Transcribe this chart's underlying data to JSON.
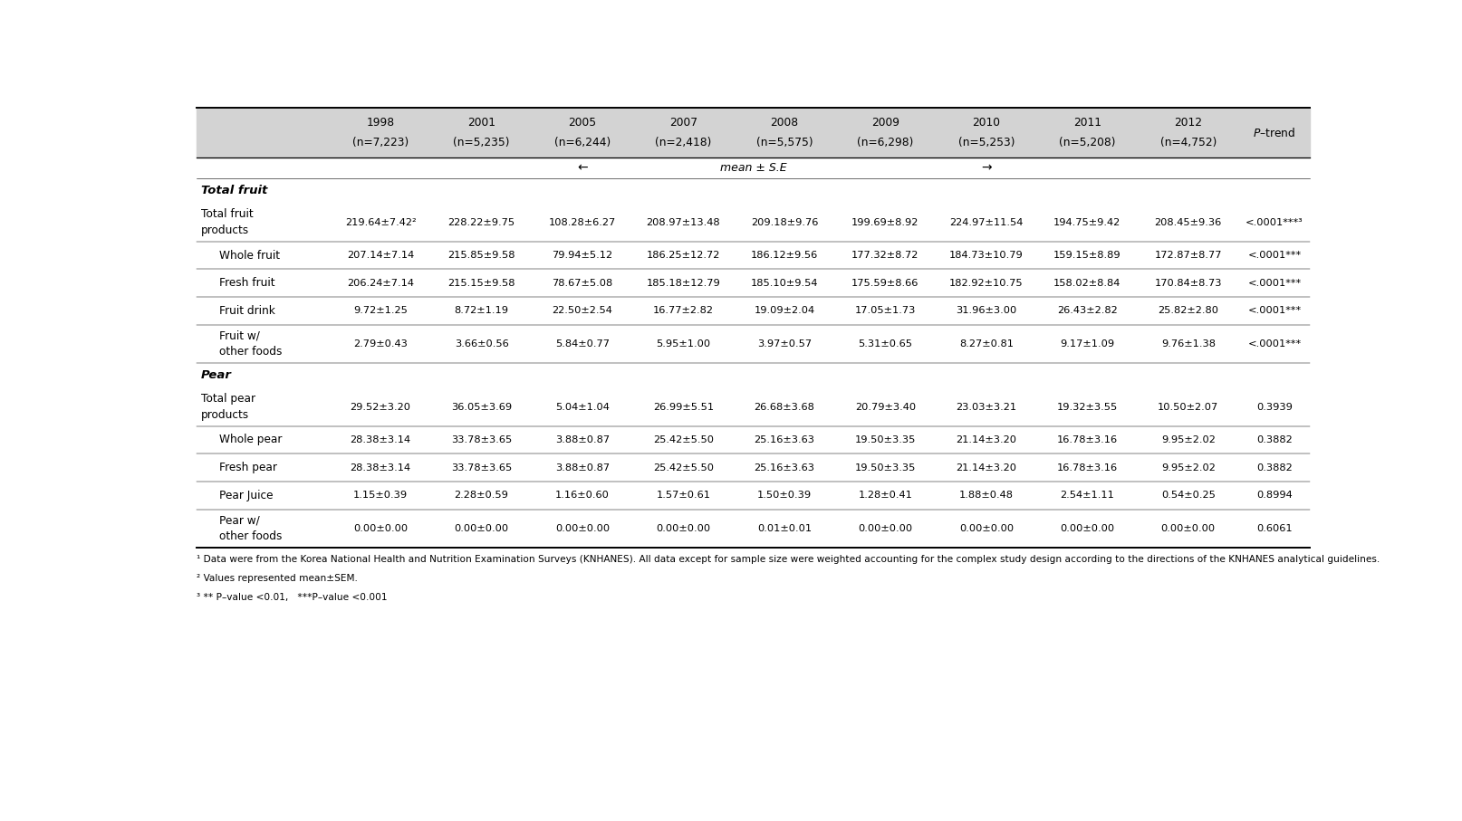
{
  "header_years": [
    "1998\n(n=7,223)",
    "2001\n(n=5,235)",
    "2005\n(n=6,244)",
    "2007\n(n=2,418)",
    "2008\n(n=5,575)",
    "2009\n(n=6,298)",
    "2010\n(n=5,253)",
    "2011\n(n=5,208)",
    "2012\n(n=4,752)"
  ],
  "col_header_ptrend": "P–trend",
  "mean_se_label": "mean ± S.E",
  "rows": [
    {
      "label": "Total fruit\nproducts",
      "indent": false,
      "values": [
        "219.64±7.42²",
        "228.22±9.75",
        "108.28±6.27",
        "208.97±13.48",
        "209.18±9.76",
        "199.69±8.92",
        "224.97±11.54",
        "194.75±9.42",
        "208.45±9.36"
      ],
      "ptrend": "<.0001***³"
    },
    {
      "label": "Whole fruit",
      "indent": true,
      "values": [
        "207.14±7.14",
        "215.85±9.58",
        "79.94±5.12",
        "186.25±12.72",
        "186.12±9.56",
        "177.32±8.72",
        "184.73±10.79",
        "159.15±8.89",
        "172.87±8.77"
      ],
      "ptrend": "<.0001***"
    },
    {
      "label": "Fresh fruit",
      "indent": true,
      "values": [
        "206.24±7.14",
        "215.15±9.58",
        "78.67±5.08",
        "185.18±12.79",
        "185.10±9.54",
        "175.59±8.66",
        "182.92±10.75",
        "158.02±8.84",
        "170.84±8.73"
      ],
      "ptrend": "<.0001***"
    },
    {
      "label": "Fruit drink",
      "indent": true,
      "values": [
        "9.72±1.25",
        "8.72±1.19",
        "22.50±2.54",
        "16.77±2.82",
        "19.09±2.04",
        "17.05±1.73",
        "31.96±3.00",
        "26.43±2.82",
        "25.82±2.80"
      ],
      "ptrend": "<.0001***"
    },
    {
      "label": "Fruit w/\nother foods",
      "indent": true,
      "values": [
        "2.79±0.43",
        "3.66±0.56",
        "5.84±0.77",
        "5.95±1.00",
        "3.97±0.57",
        "5.31±0.65",
        "8.27±0.81",
        "9.17±1.09",
        "9.76±1.38"
      ],
      "ptrend": "<.0001***"
    },
    {
      "label": "Total pear\nproducts",
      "indent": false,
      "values": [
        "29.52±3.20",
        "36.05±3.69",
        "5.04±1.04",
        "26.99±5.51",
        "26.68±3.68",
        "20.79±3.40",
        "23.03±3.21",
        "19.32±3.55",
        "10.50±2.07"
      ],
      "ptrend": "0.3939"
    },
    {
      "label": "Whole pear",
      "indent": true,
      "values": [
        "28.38±3.14",
        "33.78±3.65",
        "3.88±0.87",
        "25.42±5.50",
        "25.16±3.63",
        "19.50±3.35",
        "21.14±3.20",
        "16.78±3.16",
        "9.95±2.02"
      ],
      "ptrend": "0.3882"
    },
    {
      "label": "Fresh pear",
      "indent": true,
      "values": [
        "28.38±3.14",
        "33.78±3.65",
        "3.88±0.87",
        "25.42±5.50",
        "25.16±3.63",
        "19.50±3.35",
        "21.14±3.20",
        "16.78±3.16",
        "9.95±2.02"
      ],
      "ptrend": "0.3882"
    },
    {
      "label": "Pear Juice",
      "indent": true,
      "values": [
        "1.15±0.39",
        "2.28±0.59",
        "1.16±0.60",
        "1.57±0.61",
        "1.50±0.39",
        "1.28±0.41",
        "1.88±0.48",
        "2.54±1.11",
        "0.54±0.25"
      ],
      "ptrend": "0.8994"
    },
    {
      "label": "Pear w/\nother foods",
      "indent": true,
      "values": [
        "0.00±0.00",
        "0.00±0.00",
        "0.00±0.00",
        "0.00±0.00",
        "0.01±0.01",
        "0.00±0.00",
        "0.00±0.00",
        "0.00±0.00",
        "0.00±0.00"
      ],
      "ptrend": "0.6061"
    }
  ],
  "section_break_before": [
    0,
    5
  ],
  "section_labels": [
    "Total fruit",
    "Pear"
  ],
  "footnotes": [
    "¹ Data were from the Korea National Health and Nutrition Examination Surveys (KNHANES). All data except for sample size were weighted accounting for the complex study design according to the directions of the KNHANES analytical guidelines.",
    "² Values represented mean±SEM.",
    "³ ** P–value <0.01,   ***P–value <0.001"
  ],
  "bg_header": "#d3d3d3",
  "bg_white": "#ffffff"
}
